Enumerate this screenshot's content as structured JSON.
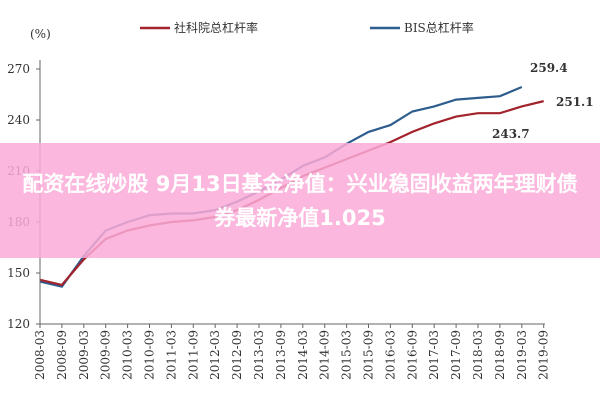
{
  "chart_data": {
    "type": "line",
    "y_label": "(%)",
    "categories": [
      "2008-03",
      "2008-09",
      "2009-03",
      "2009-09",
      "2010-03",
      "2010-09",
      "2011-03",
      "2011-09",
      "2012-03",
      "2012-09",
      "2013-03",
      "2013-09",
      "2014-03",
      "2014-09",
      "2015-03",
      "2015-09",
      "2016-03",
      "2016-09",
      "2017-03",
      "2017-09",
      "2018-03",
      "2018-09",
      "2019-03",
      "2019-09"
    ],
    "series": [
      {
        "name": "社科院总杠杆率",
        "color": "#a3232d",
        "values": [
          146,
          143,
          158,
          170,
          175,
          178,
          180,
          181,
          183,
          187,
          193,
          200,
          207,
          212,
          217,
          222,
          227,
          233,
          238,
          242,
          244,
          244,
          248,
          251.1
        ]
      },
      {
        "name": "BIS总杠杆率",
        "color": "#2e5d8e",
        "values": [
          145,
          142,
          160,
          175,
          180,
          184,
          185,
          185,
          187,
          192,
          198,
          205,
          213,
          218,
          226,
          233,
          237,
          245,
          248,
          252,
          253,
          254,
          259.4,
          null
        ]
      }
    ],
    "annotations": [
      "259.4",
      "251.1",
      "243.7"
    ],
    "ylim": [
      120,
      270
    ],
    "yticks": [
      120,
      150,
      180,
      210,
      240,
      270
    ]
  },
  "banner": "配资在线炒股 9月13日基金净值：兴业稳固收益两年理财债券最新净值1.025"
}
